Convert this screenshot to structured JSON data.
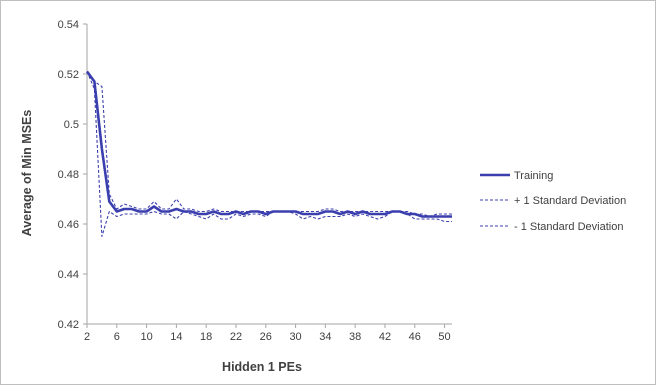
{
  "chart_data": {
    "type": "line",
    "xlabel": "Hidden 1 PEs",
    "ylabel": "Average of Min MSEs",
    "xlim": [
      2,
      51
    ],
    "ylim": [
      0.42,
      0.54
    ],
    "x_ticks": [
      2,
      6,
      10,
      14,
      18,
      22,
      26,
      30,
      34,
      38,
      42,
      46,
      50
    ],
    "y_ticks": [
      "0.42",
      "0.44",
      "0.46",
      "0.48",
      "0.5",
      "0.52",
      "0.54"
    ],
    "grid": false,
    "legend_position": "right",
    "x": [
      2,
      3,
      4,
      5,
      6,
      7,
      8,
      9,
      10,
      11,
      12,
      13,
      14,
      15,
      16,
      17,
      18,
      19,
      20,
      21,
      22,
      23,
      24,
      25,
      26,
      27,
      28,
      29,
      30,
      31,
      32,
      33,
      34,
      35,
      36,
      37,
      38,
      39,
      40,
      41,
      42,
      43,
      44,
      45,
      46,
      47,
      48,
      49,
      50,
      51
    ],
    "series": [
      {
        "name": "Training",
        "style": "solid",
        "color": "#3B3FAE",
        "values": [
          0.521,
          0.517,
          0.49,
          0.469,
          0.465,
          0.466,
          0.466,
          0.465,
          0.465,
          0.467,
          0.465,
          0.465,
          0.466,
          0.465,
          0.465,
          0.464,
          0.464,
          0.465,
          0.464,
          0.464,
          0.465,
          0.464,
          0.465,
          0.465,
          0.464,
          0.465,
          0.465,
          0.465,
          0.465,
          0.464,
          0.464,
          0.464,
          0.465,
          0.465,
          0.464,
          0.465,
          0.464,
          0.465,
          0.464,
          0.464,
          0.464,
          0.465,
          0.465,
          0.464,
          0.464,
          0.463,
          0.463,
          0.463,
          0.463,
          0.463
        ]
      },
      {
        "name": "+ 1 Standard Deviation",
        "style": "dashed",
        "color": "#3B3FAE",
        "values": [
          0.521,
          0.517,
          0.515,
          0.472,
          0.466,
          0.468,
          0.467,
          0.466,
          0.466,
          0.469,
          0.466,
          0.466,
          0.47,
          0.466,
          0.466,
          0.465,
          0.465,
          0.466,
          0.465,
          0.465,
          0.465,
          0.465,
          0.465,
          0.465,
          0.465,
          0.465,
          0.465,
          0.465,
          0.465,
          0.465,
          0.465,
          0.465,
          0.466,
          0.466,
          0.465,
          0.465,
          0.465,
          0.465,
          0.465,
          0.465,
          0.465,
          0.465,
          0.465,
          0.465,
          0.464,
          0.464,
          0.463,
          0.464,
          0.464,
          0.464
        ]
      },
      {
        "name": "- 1 Standard Deviation",
        "style": "dashed",
        "color": "#3B3FAE",
        "values": [
          0.521,
          0.514,
          0.455,
          0.465,
          0.463,
          0.464,
          0.464,
          0.464,
          0.464,
          0.465,
          0.464,
          0.464,
          0.462,
          0.465,
          0.464,
          0.463,
          0.462,
          0.464,
          0.462,
          0.462,
          0.464,
          0.463,
          0.464,
          0.464,
          0.463,
          0.465,
          0.465,
          0.465,
          0.464,
          0.462,
          0.463,
          0.462,
          0.463,
          0.463,
          0.463,
          0.464,
          0.463,
          0.464,
          0.463,
          0.462,
          0.463,
          0.465,
          0.465,
          0.464,
          0.462,
          0.462,
          0.462,
          0.462,
          0.461,
          0.461
        ]
      }
    ]
  }
}
